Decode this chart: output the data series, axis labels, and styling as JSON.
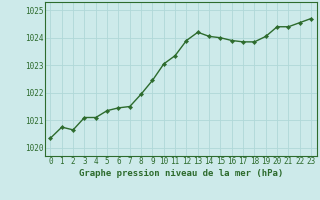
{
  "x": [
    0,
    1,
    2,
    3,
    4,
    5,
    6,
    7,
    8,
    9,
    10,
    11,
    12,
    13,
    14,
    15,
    16,
    17,
    18,
    19,
    20,
    21,
    22,
    23
  ],
  "y": [
    1020.35,
    1020.75,
    1020.65,
    1021.1,
    1021.1,
    1021.35,
    1021.45,
    1021.5,
    1021.95,
    1022.45,
    1023.05,
    1023.35,
    1023.9,
    1024.2,
    1024.05,
    1024.0,
    1023.9,
    1023.85,
    1023.85,
    1024.05,
    1024.4,
    1024.4,
    1024.55,
    1024.7
  ],
  "ylim": [
    1019.7,
    1025.3
  ],
  "yticks": [
    1020,
    1021,
    1022,
    1023,
    1024,
    1025
  ],
  "xticks": [
    0,
    1,
    2,
    3,
    4,
    5,
    6,
    7,
    8,
    9,
    10,
    11,
    12,
    13,
    14,
    15,
    16,
    17,
    18,
    19,
    20,
    21,
    22,
    23
  ],
  "line_color": "#2d6b2d",
  "marker_color": "#2d6b2d",
  "bg_color": "#cdeaea",
  "grid_color": "#b0d8d8",
  "xlabel": "Graphe pression niveau de la mer (hPa)",
  "xlabel_color": "#2d6b2d",
  "xlabel_fontsize": 6.5,
  "tick_fontsize": 5.5,
  "line_width": 1.0,
  "marker_size": 2.2
}
